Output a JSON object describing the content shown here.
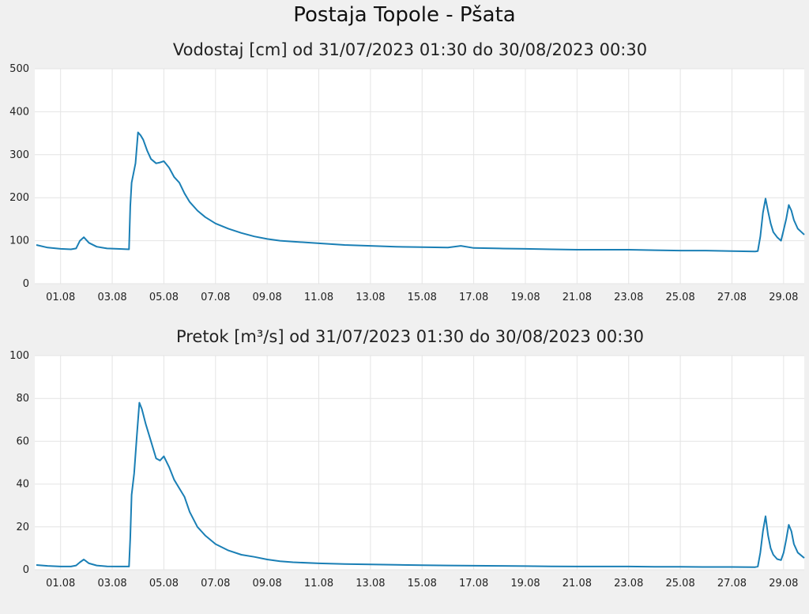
{
  "title": "Postaja Topole - Pšata",
  "colors": {
    "line": "#1a7fb5",
    "plot_bg": "#ffffff",
    "page_bg": "#f0f0f0",
    "grid": "#e4e4e4"
  },
  "chart_data": [
    {
      "type": "line",
      "title": "Vodostaj [cm] od 31/07/2023 01:30 do 30/08/2023 00:30",
      "xlabel": "",
      "ylabel": "",
      "x_unit": "days since 31.07 00:00",
      "xlim": [
        0,
        29.8
      ],
      "ylim": [
        0,
        500
      ],
      "yticks": [
        0,
        100,
        200,
        300,
        400,
        500
      ],
      "xtick_positions": [
        1,
        3,
        5,
        7,
        9,
        11,
        13,
        15,
        17,
        19,
        21,
        23,
        25,
        27,
        29
      ],
      "xtick_labels": [
        "01.08",
        "03.08",
        "05.08",
        "07.08",
        "09.08",
        "11.08",
        "13.08",
        "15.08",
        "17.08",
        "19.08",
        "21.08",
        "23.08",
        "25.08",
        "27.08",
        "29.08"
      ],
      "grid": true,
      "legend": "none",
      "series": [
        {
          "name": "Vodostaj",
          "x": [
            0.06,
            0.5,
            1.0,
            1.4,
            1.6,
            1.75,
            1.9,
            2.1,
            2.4,
            2.8,
            3.2,
            3.65,
            3.7,
            3.75,
            3.9,
            4.0,
            4.1,
            4.2,
            4.35,
            4.5,
            4.7,
            4.85,
            5.0,
            5.2,
            5.4,
            5.6,
            5.8,
            6.0,
            6.3,
            6.6,
            7.0,
            7.5,
            8.0,
            8.5,
            9.0,
            9.5,
            10.0,
            11.0,
            12.0,
            13.0,
            14.0,
            15.0,
            16.0,
            16.5,
            17.0,
            18.0,
            19.0,
            20.0,
            21.0,
            22.0,
            23.0,
            24.0,
            25.0,
            26.0,
            27.0,
            27.9,
            28.0,
            28.1,
            28.2,
            28.3,
            28.4,
            28.5,
            28.6,
            28.75,
            28.9,
            29.0,
            29.1,
            29.2,
            29.3,
            29.4,
            29.55,
            29.8
          ],
          "y": [
            90,
            84,
            81,
            80,
            82,
            100,
            108,
            95,
            86,
            82,
            81,
            80,
            180,
            235,
            280,
            352,
            345,
            335,
            310,
            290,
            280,
            282,
            285,
            270,
            248,
            235,
            210,
            190,
            170,
            155,
            140,
            128,
            118,
            110,
            104,
            100,
            98,
            94,
            90,
            88,
            86,
            85,
            84,
            88,
            83,
            82,
            81,
            80,
            79,
            79,
            79,
            78,
            77,
            77,
            76,
            75,
            76,
            110,
            165,
            198,
            168,
            140,
            120,
            108,
            100,
            125,
            150,
            183,
            170,
            148,
            128,
            114
          ]
        }
      ]
    },
    {
      "type": "line",
      "title": "Pretok [m³/s] od 31/07/2023 01:30 do 30/08/2023 00:30",
      "xlabel": "",
      "ylabel": "",
      "x_unit": "days since 31.07 00:00",
      "xlim": [
        0,
        29.8
      ],
      "ylim": [
        0,
        100
      ],
      "yticks": [
        0,
        20,
        40,
        60,
        80,
        100
      ],
      "xtick_positions": [
        1,
        3,
        5,
        7,
        9,
        11,
        13,
        15,
        17,
        19,
        21,
        23,
        25,
        27,
        29
      ],
      "xtick_labels": [
        "01.08",
        "03.08",
        "05.08",
        "07.08",
        "09.08",
        "11.08",
        "13.08",
        "15.08",
        "17.08",
        "19.08",
        "21.08",
        "23.08",
        "25.08",
        "27.08",
        "29.08"
      ],
      "grid": true,
      "legend": "none",
      "series": [
        {
          "name": "Pretok",
          "x": [
            0.06,
            0.5,
            1.0,
            1.4,
            1.6,
            1.75,
            1.9,
            2.1,
            2.4,
            2.8,
            3.2,
            3.65,
            3.7,
            3.75,
            3.85,
            3.95,
            4.05,
            4.15,
            4.3,
            4.5,
            4.7,
            4.85,
            5.0,
            5.2,
            5.4,
            5.6,
            5.8,
            6.0,
            6.3,
            6.6,
            7.0,
            7.5,
            8.0,
            8.5,
            9.0,
            9.5,
            10.0,
            11.0,
            12.0,
            13.0,
            14.0,
            15.0,
            16.0,
            17.0,
            18.0,
            19.0,
            20.0,
            21.0,
            22.0,
            23.0,
            24.0,
            25.0,
            26.0,
            27.0,
            27.9,
            28.0,
            28.1,
            28.2,
            28.3,
            28.4,
            28.5,
            28.6,
            28.75,
            28.9,
            29.0,
            29.1,
            29.2,
            29.3,
            29.4,
            29.55,
            29.8
          ],
          "y": [
            2.2,
            1.8,
            1.5,
            1.5,
            2.0,
            3.5,
            4.8,
            3.0,
            2.0,
            1.6,
            1.5,
            1.5,
            15,
            35,
            45,
            62,
            78,
            75,
            68,
            60,
            52,
            51,
            53,
            48,
            42,
            38,
            34,
            27,
            20,
            16,
            12,
            9,
            7,
            6,
            4.8,
            4.0,
            3.5,
            3.0,
            2.7,
            2.5,
            2.3,
            2.1,
            2.0,
            1.9,
            1.8,
            1.7,
            1.6,
            1.5,
            1.5,
            1.5,
            1.4,
            1.4,
            1.3,
            1.3,
            1.2,
            1.5,
            8,
            18,
            25,
            16,
            10,
            7,
            5,
            4.5,
            8,
            14,
            21,
            18,
            12,
            8,
            5.5
          ]
        }
      ]
    }
  ]
}
